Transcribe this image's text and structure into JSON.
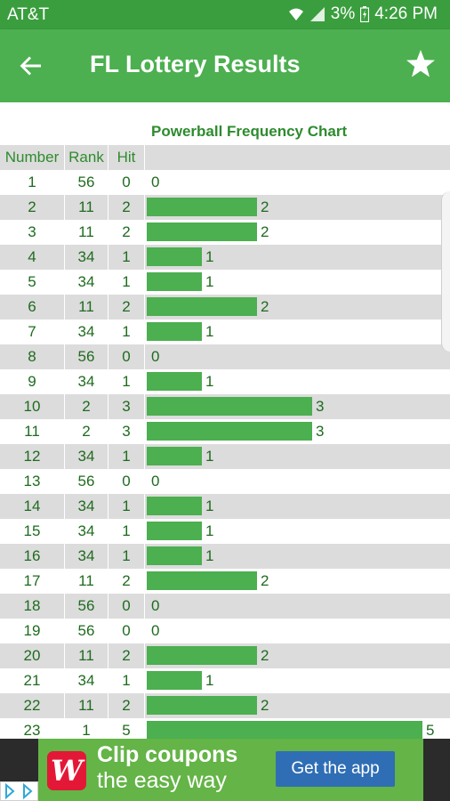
{
  "status_bar": {
    "carrier": "AT&T",
    "battery": "3%",
    "time": "4:26 PM"
  },
  "toolbar": {
    "title": "FL Lottery Results",
    "back_icon": "arrow-left-icon",
    "star_icon": "star-icon"
  },
  "chart_data": {
    "type": "bar",
    "title": "Powerball Frequency Chart",
    "columns": [
      "Number",
      "Rank",
      "Hit"
    ],
    "rows": [
      {
        "number": "1",
        "rank": "56",
        "hit": 0
      },
      {
        "number": "2",
        "rank": "11",
        "hit": 2
      },
      {
        "number": "3",
        "rank": "11",
        "hit": 2
      },
      {
        "number": "4",
        "rank": "34",
        "hit": 1
      },
      {
        "number": "5",
        "rank": "34",
        "hit": 1
      },
      {
        "number": "6",
        "rank": "11",
        "hit": 2
      },
      {
        "number": "7",
        "rank": "34",
        "hit": 1
      },
      {
        "number": "8",
        "rank": "56",
        "hit": 0
      },
      {
        "number": "9",
        "rank": "34",
        "hit": 1
      },
      {
        "number": "10",
        "rank": "2",
        "hit": 3
      },
      {
        "number": "11",
        "rank": "2",
        "hit": 3
      },
      {
        "number": "12",
        "rank": "34",
        "hit": 1
      },
      {
        "number": "13",
        "rank": "56",
        "hit": 0
      },
      {
        "number": "14",
        "rank": "34",
        "hit": 1
      },
      {
        "number": "15",
        "rank": "34",
        "hit": 1
      },
      {
        "number": "16",
        "rank": "34",
        "hit": 1
      },
      {
        "number": "17",
        "rank": "11",
        "hit": 2
      },
      {
        "number": "18",
        "rank": "56",
        "hit": 0
      },
      {
        "number": "19",
        "rank": "56",
        "hit": 0
      },
      {
        "number": "20",
        "rank": "11",
        "hit": 2
      },
      {
        "number": "21",
        "rank": "34",
        "hit": 1
      },
      {
        "number": "22",
        "rank": "11",
        "hit": 2
      },
      {
        "number": "23",
        "rank": "1",
        "hit": 5
      }
    ],
    "bar_color": "#4caf50"
  },
  "ad": {
    "logo_letter": "W",
    "line1": "Clip coupons",
    "line2": "the easy way",
    "cta": "Get the app"
  },
  "colors": {
    "primary": "#4caf50",
    "status_bar": "#3a9e3e",
    "text_green": "#1f6b1f",
    "row_shade": "#dcdcdc"
  }
}
